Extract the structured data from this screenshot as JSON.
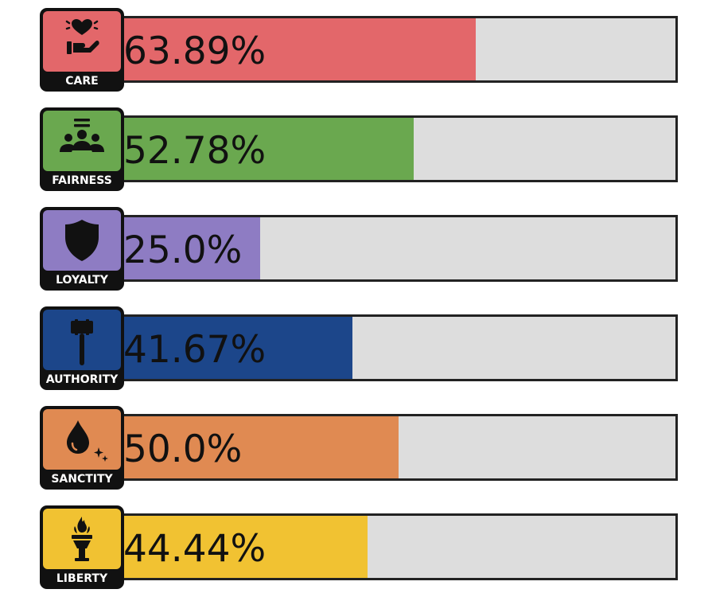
{
  "chart_data": {
    "type": "bar",
    "orientation": "horizontal",
    "ylim": [
      0,
      100
    ],
    "unit": "%",
    "bars": [
      {
        "label": "CARE",
        "value": 63.89,
        "value_label": "63.89%",
        "color": "#e3676a",
        "icon": "care-heart-hand-icon"
      },
      {
        "label": "FAIRNESS",
        "value": 52.78,
        "value_label": "52.78%",
        "color": "#6aa84f",
        "icon": "fairness-people-icon"
      },
      {
        "label": "LOYALTY",
        "value": 25.0,
        "value_label": "25.0%",
        "color": "#8e7cc3",
        "icon": "loyalty-shield-icon"
      },
      {
        "label": "AUTHORITY",
        "value": 41.67,
        "value_label": "41.67%",
        "color": "#1c468a",
        "icon": "authority-gavel-icon"
      },
      {
        "label": "SANCTITY",
        "value": 50.0,
        "value_label": "50.0%",
        "color": "#e08a52",
        "icon": "sanctity-drop-icon"
      },
      {
        "label": "LIBERTY",
        "value": 44.44,
        "value_label": "44.44%",
        "color": "#f1c232",
        "icon": "liberty-torch-icon"
      }
    ],
    "track_color": "#dddddd",
    "border_color": "#222222"
  }
}
